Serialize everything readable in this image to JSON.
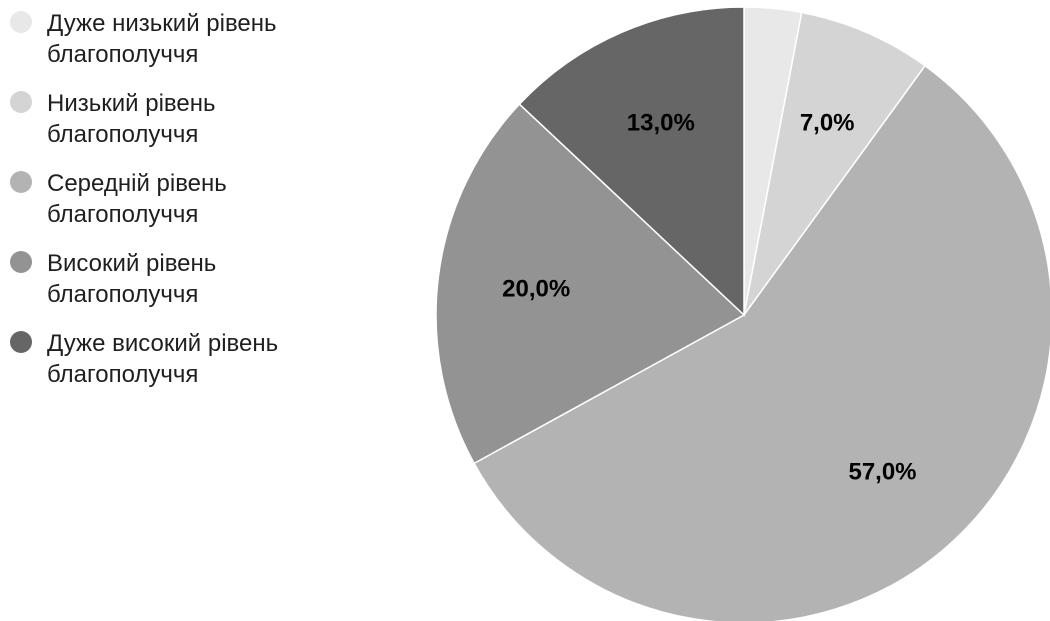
{
  "chart_data": {
    "type": "pie",
    "categories": [
      "Дуже низький рівень благополуччя",
      "Низький рівень благополуччя",
      "Середній рівень благополуччя",
      "Високий рівень благополуччя",
      "Дуже високий рівень благополуччя"
    ],
    "values": [
      3.0,
      7.0,
      57.0,
      20.0,
      13.0
    ],
    "data_labels": [
      "",
      "7,0%",
      "57,0%",
      "20,0%",
      "13,0%"
    ],
    "colors": [
      "#e8e8e8",
      "#d4d4d4",
      "#b3b3b3",
      "#939393",
      "#666666"
    ],
    "start_angle_deg": 0,
    "direction": "clockwise",
    "legend_position": "left",
    "title": "",
    "xlabel": "",
    "ylabel": ""
  }
}
